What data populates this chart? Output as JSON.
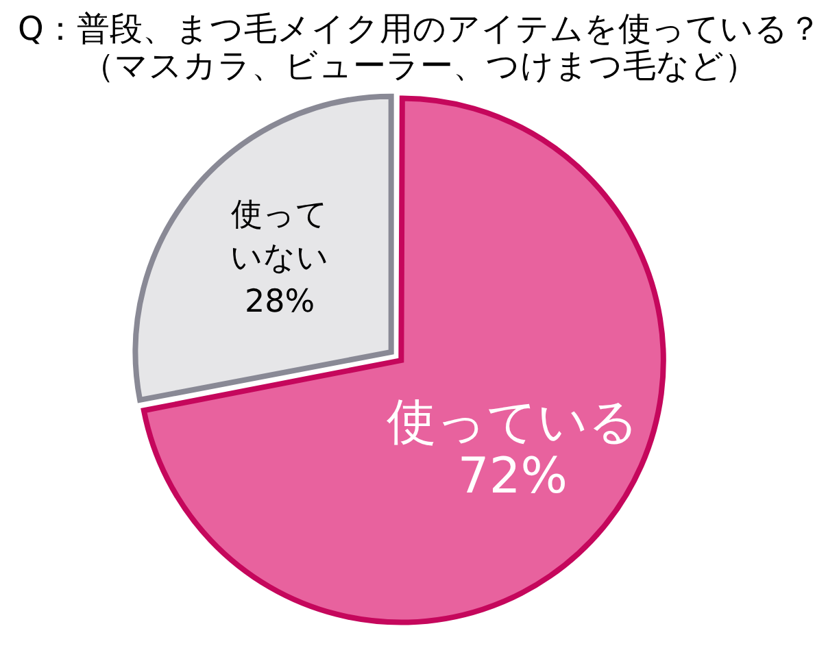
{
  "chart_data": {
    "type": "pie",
    "title": "Q：普段、まつ毛メイク用のアイテムを使っている？",
    "subtitle": "（マスカラ、ビューラー、つけまつ毛など）",
    "categories": [
      "使っている",
      "使っていない"
    ],
    "values": [
      72,
      28
    ],
    "colors": [
      "#e8629e",
      "#e6e6e8"
    ],
    "value_labels": [
      "72%",
      "28%"
    ]
  }
}
